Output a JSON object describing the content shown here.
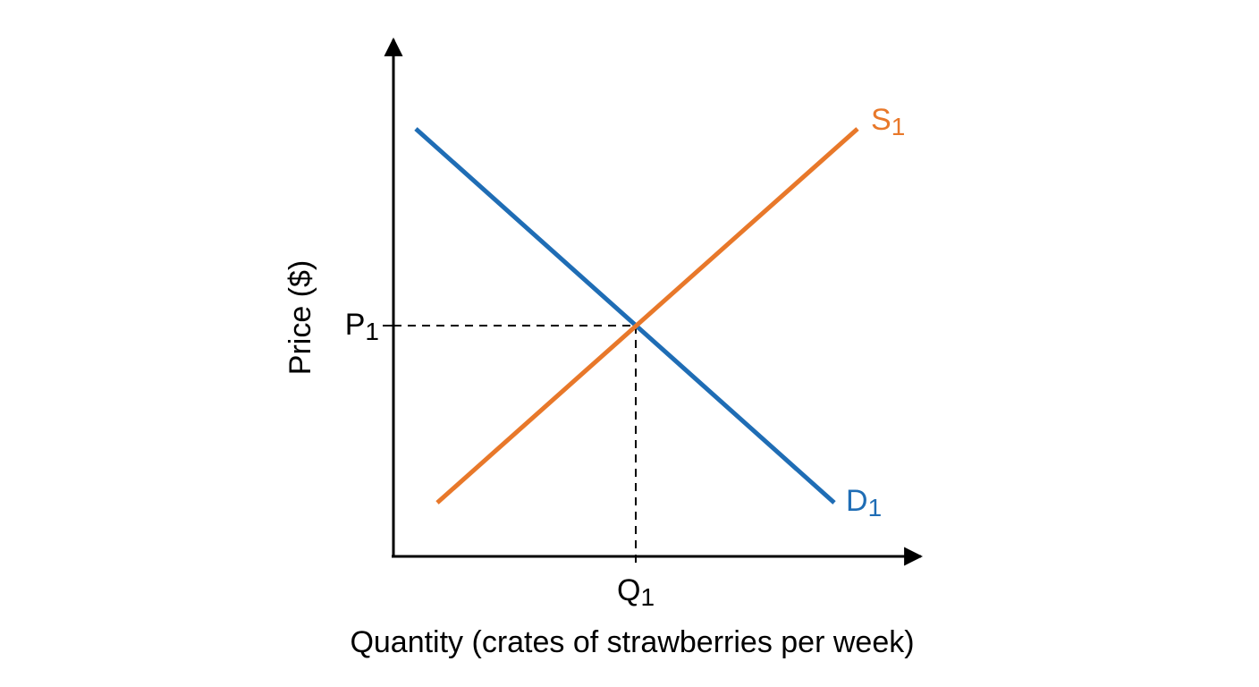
{
  "axes": {
    "y_label": "Price ($)",
    "x_label": "Quantity (crates of strawberries per week)"
  },
  "equilibrium": {
    "price": {
      "text": "P",
      "subscript": "1"
    },
    "quantity": {
      "text": "Q",
      "subscript": "1"
    }
  },
  "curves": [
    {
      "text": "S",
      "subscript": "1",
      "color": "#e8782a"
    },
    {
      "text": "D",
      "subscript": "1",
      "color": "#1f6db5"
    }
  ]
}
